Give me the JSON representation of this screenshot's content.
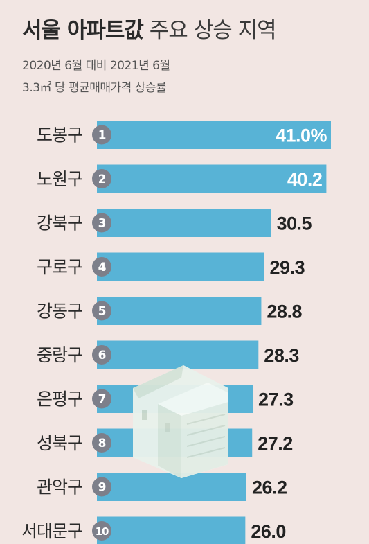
{
  "title": {
    "bold": "서울 아파트값",
    "light": "주요 상승 지역"
  },
  "subtitle_lines": [
    "2020년 6월 대비 2021년 6월",
    "3.3㎡ 당 평균매매가격 상승률"
  ],
  "colors": {
    "bar": "#58b3d6",
    "rank_circle": "#7d7f8a",
    "background": "#f2e6e3",
    "value_text": "#222222",
    "value_text_inside": "#ffffff"
  },
  "chart_data": {
    "type": "bar",
    "orientation": "horizontal",
    "title": "서울 아파트값 주요 상승 지역",
    "subtitle": "2020년 6월 대비 2021년 6월 3.3㎡ 당 평균매매가격 상승률",
    "categories": [
      "도봉구",
      "노원구",
      "강북구",
      "구로구",
      "강동구",
      "중랑구",
      "은평구",
      "성북구",
      "관악구",
      "서대문구"
    ],
    "ranks": [
      "1",
      "2",
      "3",
      "4",
      "5",
      "6",
      "7",
      "8",
      "9",
      "10"
    ],
    "values": [
      41.0,
      40.2,
      30.5,
      29.3,
      28.8,
      28.3,
      27.3,
      27.2,
      26.2,
      26.0
    ],
    "value_labels": [
      "41.0%",
      "40.2",
      "30.5",
      "29.3",
      "28.8",
      "28.3",
      "27.3",
      "27.2",
      "26.2",
      "26.0"
    ],
    "labels_inside": [
      true,
      true,
      false,
      false,
      false,
      false,
      false,
      false,
      false,
      false
    ],
    "unit": "%",
    "xlim": [
      0,
      41.0
    ],
    "grid": false,
    "legend": "none"
  }
}
